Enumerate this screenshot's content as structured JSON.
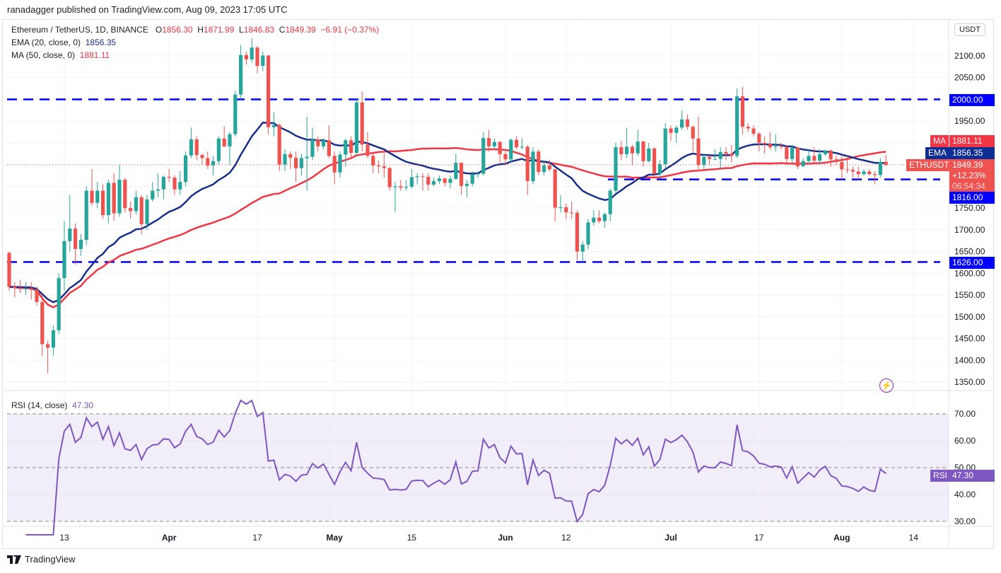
{
  "attribution": "ranadagger published on TradingView.com, Aug 09, 2023 17:05 UTC",
  "legend": {
    "symbol": "Ethereum / TetherUS, 1D, BINANCE",
    "o_label": "O",
    "o": "1856.30",
    "h_label": "H",
    "h": "1871.99",
    "l_label": "L",
    "l": "1846.83",
    "c_label": "C",
    "c": "1849.39",
    "change": "−6.91 (−0.37%)",
    "ema_label": "EMA (20, close, 0)",
    "ema_value": "1856.35",
    "ma_label": "MA (50, close, 0)",
    "ma_value": "1881.11",
    "rsi_label": "RSI (14, close)",
    "rsi_value": "47.30"
  },
  "currency": "USDT",
  "tags": {
    "ma": "MA",
    "ma_value": "1881.11",
    "ema": "EMA",
    "ema_value": "1856.35",
    "symbol": "ETHUSDT",
    "last": "1849.39",
    "pct": "+12.23%",
    "countdown": "06:54:34",
    "support1": "1816.00",
    "resistance": "2000.00",
    "support2": "1626.00",
    "rsi": "RSI",
    "rsi_value": "47.30"
  },
  "footer": "TradingView",
  "colors": {
    "up": "#26a69a",
    "down": "#ef5350",
    "ema": "#1a2e8c",
    "ma": "#f23645",
    "level": "#0000ff",
    "rsi": "#7e57c2"
  },
  "chart_data": {
    "type": "candlestick",
    "interval": "1D",
    "start_date": "2023-03-03",
    "end_date": "2023-08-09",
    "ohlc": [
      [
        1647,
        1650,
        1560,
        1569
      ],
      [
        1569,
        1580,
        1545,
        1566
      ],
      [
        1566,
        1585,
        1555,
        1564
      ],
      [
        1564,
        1580,
        1550,
        1565
      ],
      [
        1565,
        1580,
        1540,
        1562
      ],
      [
        1562,
        1570,
        1525,
        1534
      ],
      [
        1534,
        1550,
        1410,
        1437
      ],
      [
        1437,
        1445,
        1370,
        1429
      ],
      [
        1429,
        1480,
        1410,
        1469
      ],
      [
        1469,
        1600,
        1460,
        1589
      ],
      [
        1589,
        1720,
        1560,
        1674
      ],
      [
        1674,
        1780,
        1650,
        1703
      ],
      [
        1703,
        1715,
        1620,
        1656
      ],
      [
        1656,
        1690,
        1640,
        1677
      ],
      [
        1677,
        1800,
        1665,
        1790
      ],
      [
        1790,
        1840,
        1755,
        1762
      ],
      [
        1762,
        1810,
        1750,
        1790
      ],
      [
        1790,
        1805,
        1725,
        1734
      ],
      [
        1734,
        1815,
        1715,
        1808
      ],
      [
        1808,
        1830,
        1720,
        1738
      ],
      [
        1738,
        1850,
        1730,
        1815
      ],
      [
        1815,
        1820,
        1740,
        1750
      ],
      [
        1750,
        1765,
        1725,
        1743
      ],
      [
        1743,
        1790,
        1735,
        1775
      ],
      [
        1775,
        1780,
        1690,
        1713
      ],
      [
        1713,
        1780,
        1700,
        1770
      ],
      [
        1770,
        1810,
        1765,
        1790
      ],
      [
        1790,
        1830,
        1775,
        1793
      ],
      [
        1793,
        1825,
        1770,
        1822
      ],
      [
        1822,
        1840,
        1810,
        1820
      ],
      [
        1820,
        1825,
        1780,
        1793
      ],
      [
        1793,
        1835,
        1780,
        1810
      ],
      [
        1810,
        1880,
        1800,
        1871
      ],
      [
        1871,
        1935,
        1865,
        1908
      ],
      [
        1908,
        1915,
        1860,
        1872
      ],
      [
        1872,
        1875,
        1850,
        1865
      ],
      [
        1865,
        1880,
        1840,
        1848
      ],
      [
        1848,
        1870,
        1825,
        1858
      ],
      [
        1858,
        1915,
        1850,
        1910
      ],
      [
        1910,
        1938,
        1890,
        1892
      ],
      [
        1892,
        1925,
        1850,
        1920
      ],
      [
        1920,
        2020,
        1915,
        2011
      ],
      [
        2011,
        2125,
        2000,
        2102
      ],
      [
        2102,
        2110,
        2080,
        2092
      ],
      [
        2092,
        2140,
        2085,
        2119
      ],
      [
        2119,
        2123,
        2060,
        2077
      ],
      [
        2077,
        2110,
        2065,
        2101
      ],
      [
        2101,
        2102,
        1920,
        1936
      ],
      [
        1936,
        1970,
        1915,
        1941
      ],
      [
        1941,
        1945,
        1835,
        1850
      ],
      [
        1850,
        1885,
        1835,
        1874
      ],
      [
        1874,
        1880,
        1840,
        1866
      ],
      [
        1866,
        1880,
        1810,
        1842
      ],
      [
        1842,
        1875,
        1825,
        1865
      ],
      [
        1865,
        1960,
        1790,
        1868
      ],
      [
        1868,
        1935,
        1860,
        1908
      ],
      [
        1908,
        1915,
        1880,
        1892
      ],
      [
        1892,
        1910,
        1885,
        1906
      ],
      [
        1906,
        1940,
        1865,
        1870
      ],
      [
        1870,
        1880,
        1805,
        1832
      ],
      [
        1832,
        1880,
        1820,
        1873
      ],
      [
        1873,
        1910,
        1845,
        1906
      ],
      [
        1906,
        1915,
        1865,
        1877
      ],
      [
        1877,
        2000,
        1870,
        1993
      ],
      [
        1993,
        2018,
        1880,
        1896
      ],
      [
        1896,
        1925,
        1865,
        1870
      ],
      [
        1870,
        1875,
        1830,
        1848
      ],
      [
        1848,
        1860,
        1830,
        1846
      ],
      [
        1846,
        1875,
        1820,
        1842
      ],
      [
        1842,
        1845,
        1790,
        1798
      ],
      [
        1798,
        1810,
        1740,
        1800
      ],
      [
        1800,
        1815,
        1790,
        1797
      ],
      [
        1797,
        1815,
        1790,
        1799
      ],
      [
        1799,
        1840,
        1795,
        1821
      ],
      [
        1821,
        1830,
        1805,
        1823
      ],
      [
        1823,
        1830,
        1790,
        1822
      ],
      [
        1822,
        1830,
        1790,
        1804
      ],
      [
        1804,
        1820,
        1800,
        1812
      ],
      [
        1812,
        1825,
        1805,
        1818
      ],
      [
        1818,
        1820,
        1800,
        1808
      ],
      [
        1808,
        1825,
        1795,
        1817
      ],
      [
        1817,
        1875,
        1815,
        1854
      ],
      [
        1854,
        1855,
        1780,
        1801
      ],
      [
        1801,
        1815,
        1775,
        1806
      ],
      [
        1806,
        1835,
        1800,
        1828
      ],
      [
        1828,
        1835,
        1820,
        1829
      ],
      [
        1829,
        1925,
        1825,
        1911
      ],
      [
        1911,
        1930,
        1880,
        1892
      ],
      [
        1892,
        1910,
        1885,
        1902
      ],
      [
        1902,
        1905,
        1855,
        1874
      ],
      [
        1874,
        1880,
        1850,
        1862
      ],
      [
        1862,
        1910,
        1855,
        1907
      ],
      [
        1907,
        1915,
        1885,
        1890
      ],
      [
        1890,
        1910,
        1885,
        1891
      ],
      [
        1891,
        1895,
        1780,
        1812
      ],
      [
        1812,
        1890,
        1805,
        1880
      ],
      [
        1880,
        1885,
        1825,
        1833
      ],
      [
        1833,
        1860,
        1825,
        1848
      ],
      [
        1848,
        1860,
        1835,
        1839
      ],
      [
        1839,
        1840,
        1720,
        1751
      ],
      [
        1751,
        1780,
        1740,
        1752
      ],
      [
        1752,
        1760,
        1725,
        1740
      ],
      [
        1740,
        1765,
        1725,
        1739
      ],
      [
        1739,
        1745,
        1630,
        1650
      ],
      [
        1650,
        1675,
        1626,
        1666
      ],
      [
        1666,
        1725,
        1655,
        1717
      ],
      [
        1717,
        1745,
        1710,
        1728
      ],
      [
        1728,
        1745,
        1715,
        1720
      ],
      [
        1720,
        1740,
        1705,
        1736
      ],
      [
        1736,
        1795,
        1720,
        1790
      ],
      [
        1790,
        1900,
        1785,
        1890
      ],
      [
        1890,
        1905,
        1860,
        1874
      ],
      [
        1874,
        1935,
        1865,
        1891
      ],
      [
        1891,
        1895,
        1850,
        1876
      ],
      [
        1876,
        1930,
        1870,
        1903
      ],
      [
        1903,
        1905,
        1845,
        1858
      ],
      [
        1858,
        1900,
        1855,
        1887
      ],
      [
        1887,
        1890,
        1820,
        1829
      ],
      [
        1829,
        1860,
        1820,
        1851
      ],
      [
        1851,
        1945,
        1840,
        1933
      ],
      [
        1933,
        1940,
        1905,
        1923
      ],
      [
        1923,
        1940,
        1900,
        1935
      ],
      [
        1935,
        1975,
        1930,
        1954
      ],
      [
        1954,
        1965,
        1930,
        1937
      ],
      [
        1937,
        1940,
        1880,
        1910
      ],
      [
        1910,
        1960,
        1835,
        1849
      ],
      [
        1849,
        1875,
        1840,
        1868
      ],
      [
        1868,
        1870,
        1850,
        1863
      ],
      [
        1863,
        1885,
        1860,
        1863
      ],
      [
        1863,
        1890,
        1840,
        1879
      ],
      [
        1879,
        1890,
        1860,
        1875
      ],
      [
        1875,
        1895,
        1855,
        1870
      ],
      [
        1870,
        2025,
        1865,
        2007
      ],
      [
        2007,
        2029,
        1920,
        1937
      ],
      [
        1937,
        1945,
        1925,
        1933
      ],
      [
        1933,
        1940,
        1915,
        1921
      ],
      [
        1921,
        1925,
        1880,
        1900
      ],
      [
        1900,
        1915,
        1875,
        1897
      ],
      [
        1897,
        1925,
        1885,
        1890
      ],
      [
        1890,
        1920,
        1880,
        1892
      ],
      [
        1892,
        1900,
        1885,
        1890
      ],
      [
        1890,
        1895,
        1850,
        1863
      ],
      [
        1863,
        1895,
        1855,
        1889
      ],
      [
        1889,
        1890,
        1840,
        1846
      ],
      [
        1846,
        1865,
        1845,
        1858
      ],
      [
        1858,
        1885,
        1850,
        1870
      ],
      [
        1870,
        1890,
        1855,
        1859
      ],
      [
        1859,
        1885,
        1850,
        1874
      ],
      [
        1874,
        1885,
        1870,
        1882
      ],
      [
        1882,
        1885,
        1845,
        1862
      ],
      [
        1862,
        1870,
        1850,
        1856
      ],
      [
        1856,
        1870,
        1815,
        1839
      ],
      [
        1839,
        1870,
        1830,
        1838
      ],
      [
        1838,
        1845,
        1820,
        1834
      ],
      [
        1834,
        1845,
        1815,
        1828
      ],
      [
        1828,
        1840,
        1825,
        1834
      ],
      [
        1834,
        1840,
        1825,
        1828
      ],
      [
        1828,
        1835,
        1805,
        1826
      ],
      [
        1826,
        1865,
        1820,
        1856
      ],
      [
        1856.3,
        1871.99,
        1846.83,
        1849.39
      ]
    ],
    "indicators": [
      {
        "name": "EMA",
        "period": 20
      },
      {
        "name": "MA",
        "period": 50
      },
      {
        "name": "RSI",
        "period": 14,
        "bands": [
          70,
          50,
          30
        ]
      }
    ],
    "horizontal_levels": [
      2000,
      1816,
      1626
    ],
    "price_axis": {
      "ticks": [
        "2100.00",
        "2050.00",
        "2000.00",
        "1950.00",
        "1900.00",
        "1850.00",
        "1800.00",
        "1750.00",
        "1700.00",
        "1650.00",
        "1600.00",
        "1550.00",
        "1500.00",
        "1450.00",
        "1400.00",
        "1350.00"
      ],
      "range": [
        1320,
        2145
      ]
    },
    "rsi_axis": {
      "ticks": [
        "70.00",
        "60.00",
        "50.00",
        "40.00",
        "30.00"
      ]
    },
    "time_axis": {
      "ticks": [
        {
          "label": "13",
          "date": "2023-03-13"
        },
        {
          "label": "Apr",
          "date": "2023-04-01"
        },
        {
          "label": "17",
          "date": "2023-04-17"
        },
        {
          "label": "May",
          "date": "2023-05-01"
        },
        {
          "label": "15",
          "date": "2023-05-15"
        },
        {
          "label": "Jun",
          "date": "2023-06-01"
        },
        {
          "label": "12",
          "date": "2023-06-12"
        },
        {
          "label": "Jul",
          "date": "2023-07-01"
        },
        {
          "label": "17",
          "date": "2023-07-17"
        },
        {
          "label": "Aug",
          "date": "2023-08-01"
        },
        {
          "label": "14",
          "date": "2023-08-14"
        }
      ]
    },
    "grid": true
  }
}
